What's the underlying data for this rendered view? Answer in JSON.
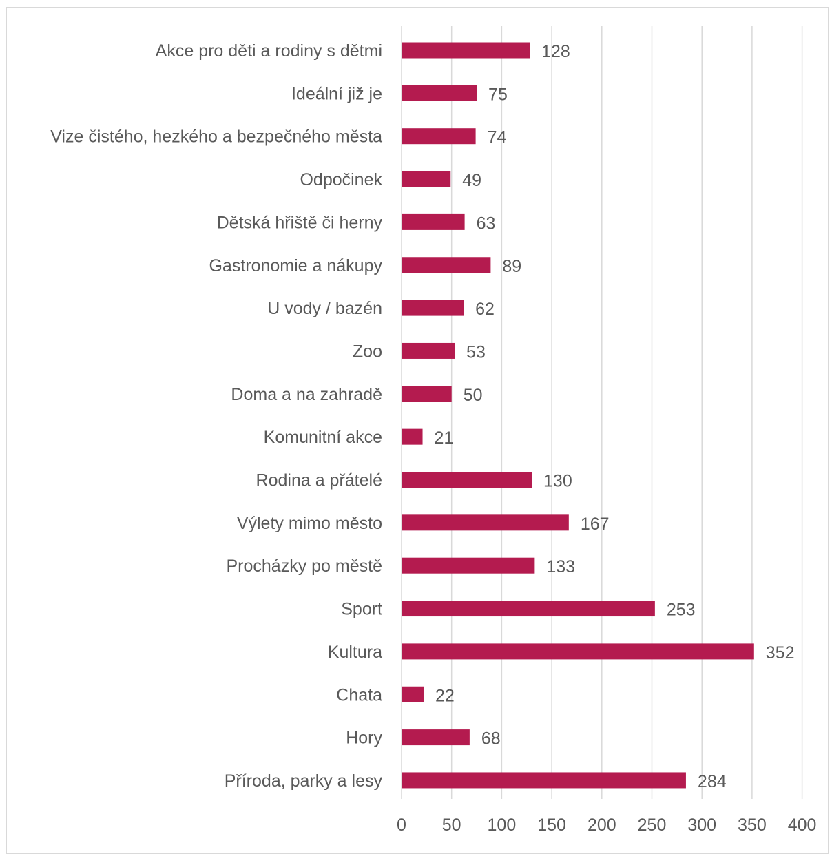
{
  "chart_data": {
    "type": "bar",
    "orientation": "horizontal",
    "title": "",
    "xlabel": "",
    "ylabel": "",
    "categories": [
      "Akce pro děti a rodiny s dětmi",
      "Ideální již je",
      "Vize čistého, hezkého a bezpečného města",
      "Odpočinek",
      "Dětská hřiště či herny",
      "Gastronomie a nákupy",
      "U vody / bazén",
      "Zoo",
      "Doma a na zahradě",
      "Komunitní akce",
      "Rodina a přátelé",
      "Výlety mimo město",
      "Procházky po městě",
      "Sport",
      "Kultura",
      "Chata",
      "Hory",
      "Příroda, parky a lesy"
    ],
    "values": [
      128,
      75,
      74,
      49,
      63,
      89,
      62,
      53,
      50,
      21,
      130,
      167,
      133,
      253,
      352,
      22,
      68,
      284
    ],
    "xlim": [
      0,
      400
    ],
    "ticks": [
      "0",
      "50",
      "100",
      "150",
      "200",
      "250",
      "300",
      "350",
      "400"
    ],
    "grid": "vertical",
    "bar_color": "#b41b4f",
    "grid_color": "#d9d9d9"
  }
}
